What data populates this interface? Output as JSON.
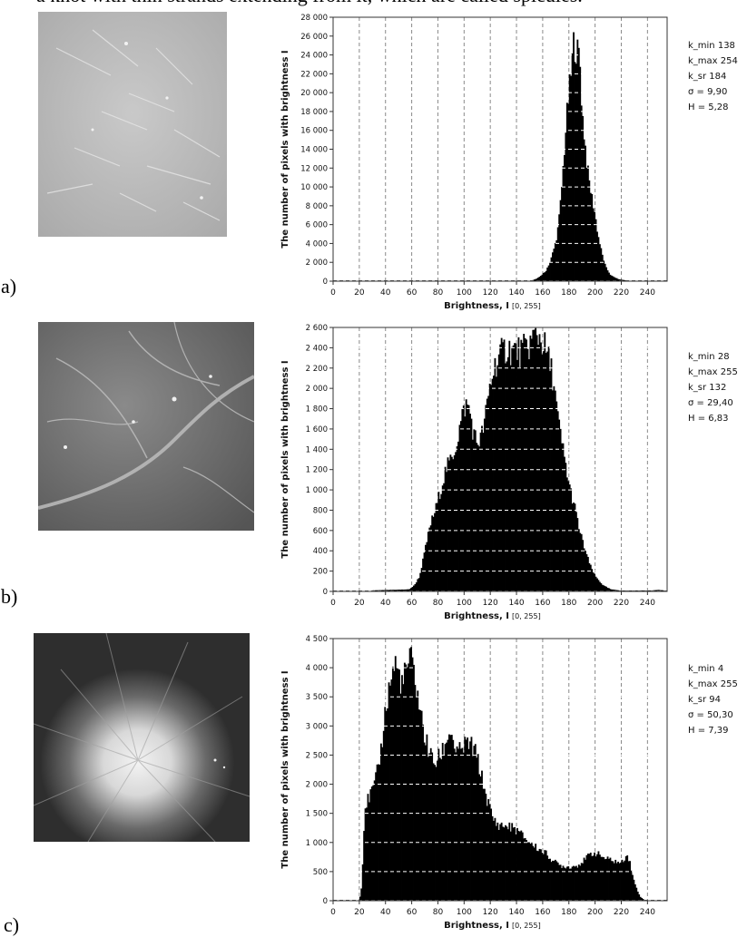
{
  "header": {
    "caption_text": "a knot with thin strands extending from it, which are called spicules."
  },
  "panels": [
    {
      "label": "a)",
      "image": "mammogram-fragment-fine-calcifications",
      "stats": [
        "k_min 138",
        "k_max 254",
        "k_sr 184",
        "σ = 9,90",
        "H = 5,28"
      ]
    },
    {
      "label": "b)",
      "image": "mammogram-fragment-vessels",
      "stats": [
        "k_min 28",
        "k_max 255",
        "k_sr 132",
        "σ = 29,40",
        "H = 6,83"
      ]
    },
    {
      "label": "c)",
      "image": "mammogram-fragment-spiculated-mass",
      "stats": [
        "k_min 4",
        "k_max 255",
        "k_sr 94",
        "σ = 50,30",
        "H = 7,39"
      ]
    }
  ],
  "chart_data": [
    {
      "type": "bar",
      "title": "",
      "xlabel": "Brightness, I",
      "xlabel_range": "[0, 255]",
      "ylabel": "The number of pixels with brightness I",
      "xlim": [
        0,
        255
      ],
      "ylim": [
        0,
        28000
      ],
      "x_ticks": [
        0,
        20,
        40,
        60,
        80,
        100,
        120,
        140,
        160,
        180,
        200,
        220,
        240
      ],
      "y_ticks": [
        0,
        2000,
        4000,
        6000,
        8000,
        10000,
        12000,
        14000,
        16000,
        18000,
        20000,
        22000,
        24000,
        26000,
        28000
      ],
      "y_tick_labels": [
        "0",
        "2 000",
        "4 000",
        "6 000",
        "8 000",
        "10 000",
        "12 000",
        "14 000",
        "16 000",
        "18 000",
        "20 000",
        "22 000",
        "24 000",
        "26 000",
        "28 000"
      ],
      "grid": "vertical-dashed",
      "profile": [
        [
          0,
          0
        ],
        [
          150,
          0
        ],
        [
          156,
          300
        ],
        [
          162,
          1000
        ],
        [
          166,
          2200
        ],
        [
          170,
          4200
        ],
        [
          172,
          6000
        ],
        [
          174,
          9000
        ],
        [
          176,
          13000
        ],
        [
          178,
          17000
        ],
        [
          180,
          20000
        ],
        [
          182,
          22500
        ],
        [
          183,
          24500
        ],
        [
          184,
          26000
        ],
        [
          185,
          24000
        ],
        [
          186,
          25000
        ],
        [
          187,
          23500
        ],
        [
          188,
          24500
        ],
        [
          190,
          18000
        ],
        [
          192,
          15000
        ],
        [
          194,
          12000
        ],
        [
          196,
          10000
        ],
        [
          198,
          8500
        ],
        [
          200,
          7000
        ],
        [
          202,
          5000
        ],
        [
          205,
          3000
        ],
        [
          208,
          1500
        ],
        [
          212,
          600
        ],
        [
          218,
          200
        ],
        [
          225,
          60
        ],
        [
          232,
          0
        ],
        [
          255,
          0
        ]
      ]
    },
    {
      "type": "bar",
      "title": "",
      "xlabel": "Brightness, I",
      "xlabel_range": "[0, 255]",
      "ylabel": "The number of pixels with brightness I",
      "xlim": [
        0,
        255
      ],
      "ylim": [
        0,
        2600
      ],
      "x_ticks": [
        0,
        20,
        40,
        60,
        80,
        100,
        120,
        140,
        160,
        180,
        200,
        220,
        240
      ],
      "y_ticks": [
        0,
        200,
        400,
        600,
        800,
        1000,
        1200,
        1400,
        1600,
        1800,
        2000,
        2200,
        2400,
        2600
      ],
      "y_tick_labels": [
        "0",
        "200",
        "400",
        "600",
        "800",
        "1 000",
        "1 200",
        "1 400",
        "1 600",
        "1 800",
        "2 000",
        "2 200",
        "2 400",
        "2 600"
      ],
      "grid": "vertical-dashed",
      "profile": [
        [
          0,
          0
        ],
        [
          28,
          0
        ],
        [
          30,
          10
        ],
        [
          58,
          20
        ],
        [
          62,
          60
        ],
        [
          66,
          150
        ],
        [
          70,
          400
        ],
        [
          74,
          650
        ],
        [
          78,
          800
        ],
        [
          82,
          1000
        ],
        [
          86,
          1200
        ],
        [
          90,
          1300
        ],
        [
          94,
          1450
        ],
        [
          98,
          1700
        ],
        [
          101,
          1840
        ],
        [
          104,
          1800
        ],
        [
          107,
          1560
        ],
        [
          110,
          1460
        ],
        [
          113,
          1520
        ],
        [
          116,
          1700
        ],
        [
          120,
          2050
        ],
        [
          124,
          2250
        ],
        [
          128,
          2330
        ],
        [
          132,
          2400
        ],
        [
          136,
          2380
        ],
        [
          140,
          2370
        ],
        [
          144,
          2360
        ],
        [
          148,
          2400
        ],
        [
          152,
          2480
        ],
        [
          155,
          2540
        ],
        [
          158,
          2500
        ],
        [
          161,
          2420
        ],
        [
          164,
          2300
        ],
        [
          168,
          2100
        ],
        [
          172,
          1650
        ],
        [
          176,
          1350
        ],
        [
          180,
          1050
        ],
        [
          184,
          850
        ],
        [
          188,
          600
        ],
        [
          192,
          420
        ],
        [
          196,
          260
        ],
        [
          200,
          150
        ],
        [
          206,
          60
        ],
        [
          212,
          20
        ],
        [
          220,
          8
        ],
        [
          244,
          10
        ],
        [
          248,
          15
        ],
        [
          252,
          10
        ],
        [
          255,
          0
        ]
      ]
    },
    {
      "type": "bar",
      "title": "",
      "xlabel": "Brightness, I",
      "xlabel_range": "[0, 255]",
      "ylabel": "The number of pixels with brightness I",
      "xlim": [
        0,
        255
      ],
      "ylim": [
        0,
        4500
      ],
      "x_ticks": [
        0,
        20,
        40,
        60,
        80,
        100,
        120,
        140,
        160,
        180,
        200,
        220,
        240
      ],
      "y_ticks": [
        0,
        500,
        1000,
        1500,
        2000,
        2500,
        3000,
        3500,
        4000,
        4500
      ],
      "y_tick_labels": [
        "0",
        "500",
        "1 000",
        "1 500",
        "2 000",
        "2 500",
        "3 000",
        "3 500",
        "4 000",
        "4 500"
      ],
      "grid": "vertical-dashed",
      "profile": [
        [
          0,
          0
        ],
        [
          20,
          0
        ],
        [
          22,
          300
        ],
        [
          24,
          1600
        ],
        [
          28,
          1800
        ],
        [
          32,
          2000
        ],
        [
          36,
          2500
        ],
        [
          40,
          3300
        ],
        [
          44,
          3800
        ],
        [
          47,
          4080
        ],
        [
          50,
          3900
        ],
        [
          53,
          3700
        ],
        [
          56,
          4000
        ],
        [
          59,
          4150
        ],
        [
          62,
          3900
        ],
        [
          66,
          3300
        ],
        [
          70,
          2800
        ],
        [
          74,
          2500
        ],
        [
          78,
          2350
        ],
        [
          82,
          2500
        ],
        [
          86,
          2700
        ],
        [
          89,
          2960
        ],
        [
          92,
          2700
        ],
        [
          95,
          2500
        ],
        [
          98,
          2600
        ],
        [
          102,
          2700
        ],
        [
          106,
          2650
        ],
        [
          110,
          2450
        ],
        [
          114,
          2050
        ],
        [
          118,
          1700
        ],
        [
          122,
          1400
        ],
        [
          126,
          1300
        ],
        [
          132,
          1280
        ],
        [
          138,
          1250
        ],
        [
          144,
          1130
        ],
        [
          150,
          1000
        ],
        [
          156,
          900
        ],
        [
          162,
          820
        ],
        [
          168,
          680
        ],
        [
          174,
          600
        ],
        [
          180,
          580
        ],
        [
          186,
          600
        ],
        [
          192,
          700
        ],
        [
          196,
          800
        ],
        [
          200,
          820
        ],
        [
          204,
          780
        ],
        [
          208,
          720
        ],
        [
          212,
          700
        ],
        [
          216,
          670
        ],
        [
          220,
          640
        ],
        [
          224,
          800
        ],
        [
          226,
          700
        ],
        [
          230,
          300
        ],
        [
          234,
          80
        ],
        [
          238,
          0
        ],
        [
          255,
          0
        ]
      ]
    }
  ]
}
